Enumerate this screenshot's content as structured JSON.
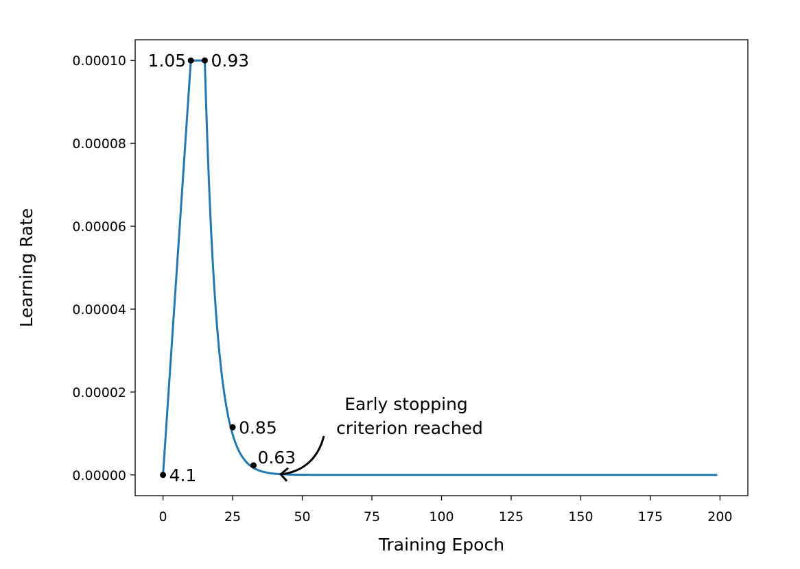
{
  "chart_data": {
    "type": "line",
    "title": "",
    "xlabel": "Training Epoch",
    "ylabel": "Learning Rate",
    "xlim": [
      -10,
      210
    ],
    "ylim": [
      -5e-06,
      0.000105
    ],
    "grid": false,
    "legend": "none",
    "x_ticks": [
      0,
      25,
      50,
      75,
      100,
      125,
      150,
      175,
      200
    ],
    "x_tick_labels": [
      "0",
      "25",
      "50",
      "75",
      "100",
      "125",
      "150",
      "175",
      "200"
    ],
    "y_ticks": [
      0,
      2e-05,
      4e-05,
      6e-05,
      8e-05,
      0.0001
    ],
    "y_tick_labels": [
      "0.00000",
      "0.00002",
      "0.00004",
      "0.00006",
      "0.00008",
      "0.00010"
    ],
    "series": [
      {
        "color": "#1f77b4",
        "schedule": {
          "warmup_end_epoch": 10,
          "hold_end_epoch": 15,
          "max_lr": 0.0001,
          "end_epoch": 199
        }
      }
    ],
    "marked_points": [
      {
        "x": 0,
        "y": 0.0,
        "label": "4.1",
        "label_side": "right"
      },
      {
        "x": 10,
        "y": 0.0001,
        "label": "1.05",
        "label_side": "left"
      },
      {
        "x": 15,
        "y": 0.0001,
        "label": "0.93",
        "label_side": "right"
      },
      {
        "x": 25,
        "y": 1.15e-05,
        "label": "0.85",
        "label_side": "right"
      },
      {
        "x": 32.5,
        "y": 2.3e-06,
        "label": "0.63",
        "label_side": "above-right"
      }
    ],
    "annotation": {
      "text_lines": [
        "Early stopping",
        "criterion reached"
      ],
      "target_x": 42,
      "target_y": 0.0
    },
    "colors": {
      "line": "#1f77b4",
      "marker": "#000000",
      "axes": "#000000"
    }
  }
}
